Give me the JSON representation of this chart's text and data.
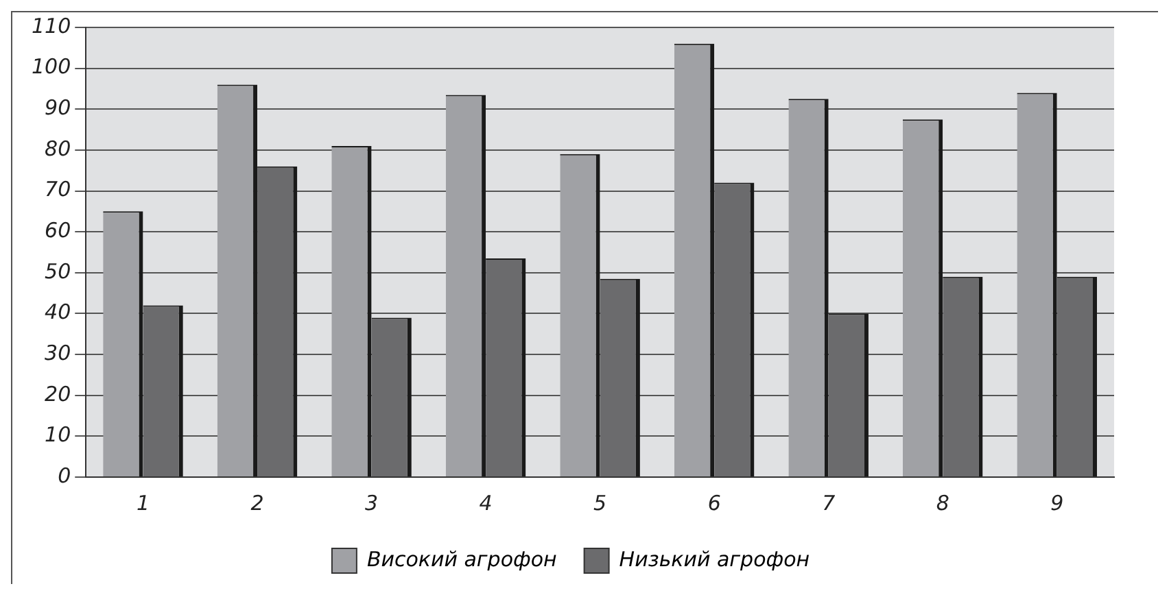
{
  "chart_data": {
    "type": "bar",
    "categories": [
      "1",
      "2",
      "3",
      "4",
      "5",
      "6",
      "7",
      "8",
      "9"
    ],
    "series": [
      {
        "name": "Високий агрофон",
        "color": "#a0a1a5",
        "values": [
          65,
          96,
          81,
          93.5,
          79,
          106,
          92.5,
          87.5,
          94
        ]
      },
      {
        "name": "Низький агрофон",
        "color": "#6b6b6d",
        "values": [
          42,
          76,
          39,
          53.5,
          48.5,
          72,
          40,
          49,
          49
        ]
      }
    ],
    "ylim": [
      0,
      110
    ],
    "yticks": [
      0,
      10,
      20,
      30,
      40,
      50,
      60,
      70,
      80,
      90,
      100,
      110
    ],
    "grid": "y",
    "legend": "bottom"
  }
}
